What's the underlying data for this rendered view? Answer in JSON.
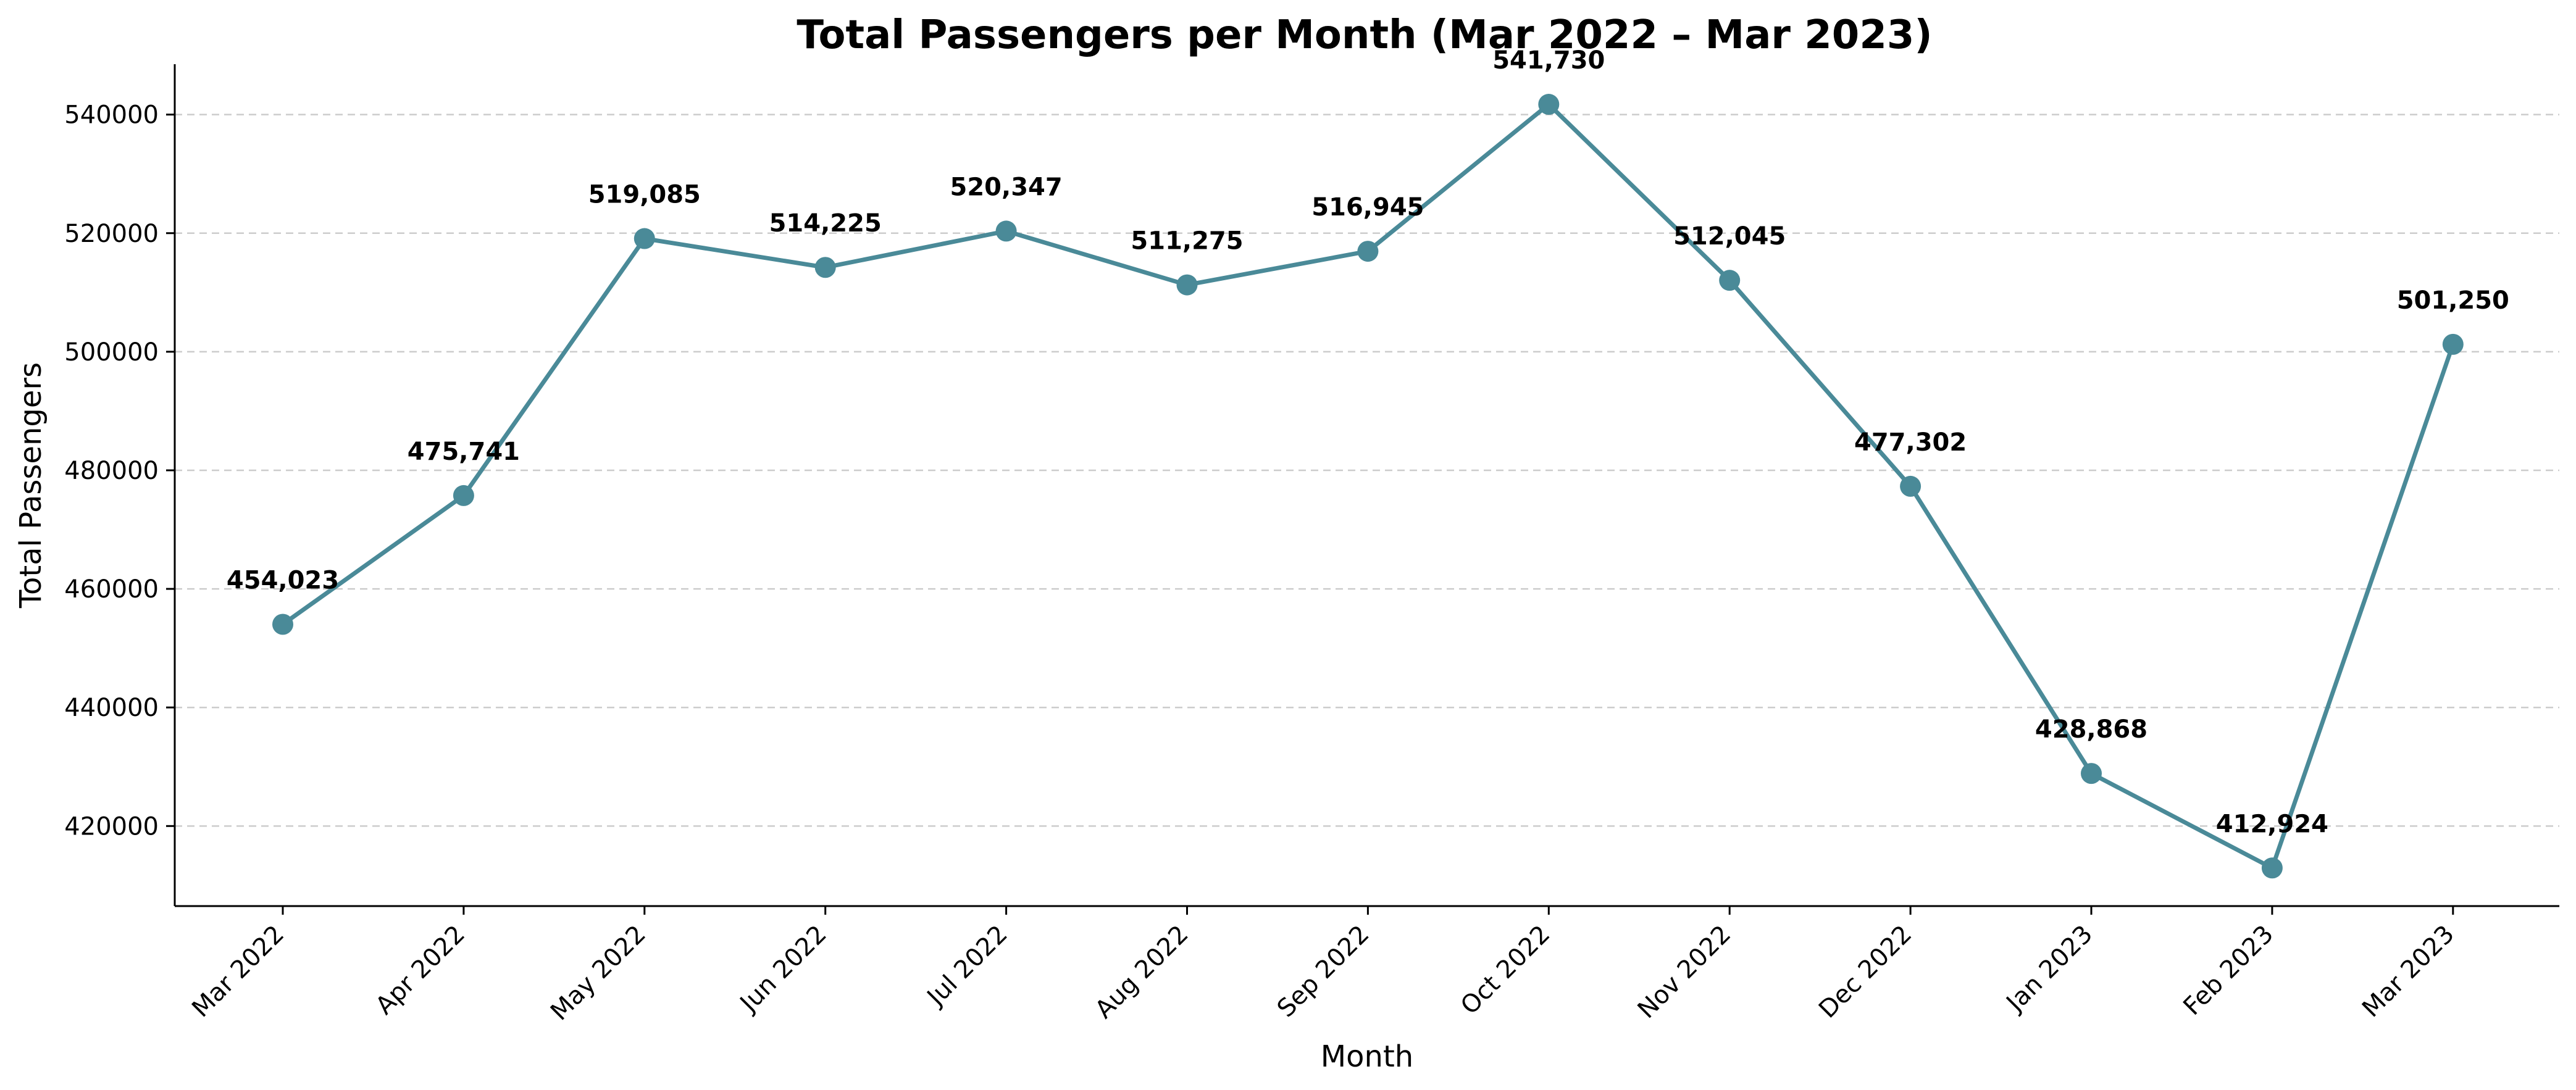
{
  "chart_data": {
    "type": "line",
    "title": "Total Passengers per Month (Mar 2022 – Mar 2023)",
    "xlabel": "Month",
    "ylabel": "Total Passengers",
    "categories": [
      "Mar 2022",
      "Apr 2022",
      "May 2022",
      "Jun 2022",
      "Jul 2022",
      "Aug 2022",
      "Sep 2022",
      "Oct 2022",
      "Nov 2022",
      "Dec 2022",
      "Jan 2023",
      "Feb 2023",
      "Mar 2023"
    ],
    "values": [
      454023,
      475741,
      519085,
      514225,
      520347,
      511275,
      516945,
      541730,
      512045,
      477302,
      428868,
      412924,
      501250
    ],
    "data_labels": [
      "454,023",
      "475,741",
      "519,085",
      "514,225",
      "520,347",
      "511,275",
      "516,945",
      "541,730",
      "512,045",
      "477,302",
      "428,868",
      "412,924",
      "501,250"
    ],
    "y_ticks": [
      420000,
      440000,
      460000,
      480000,
      500000,
      520000,
      540000
    ],
    "y_tick_labels": [
      "420000",
      "440000",
      "460000",
      "480000",
      "500000",
      "520000",
      "540000"
    ],
    "ylim": [
      406500,
      548500
    ],
    "grid": "horizontal dashed",
    "line_color": "#4a8a98",
    "marker": "circle"
  }
}
